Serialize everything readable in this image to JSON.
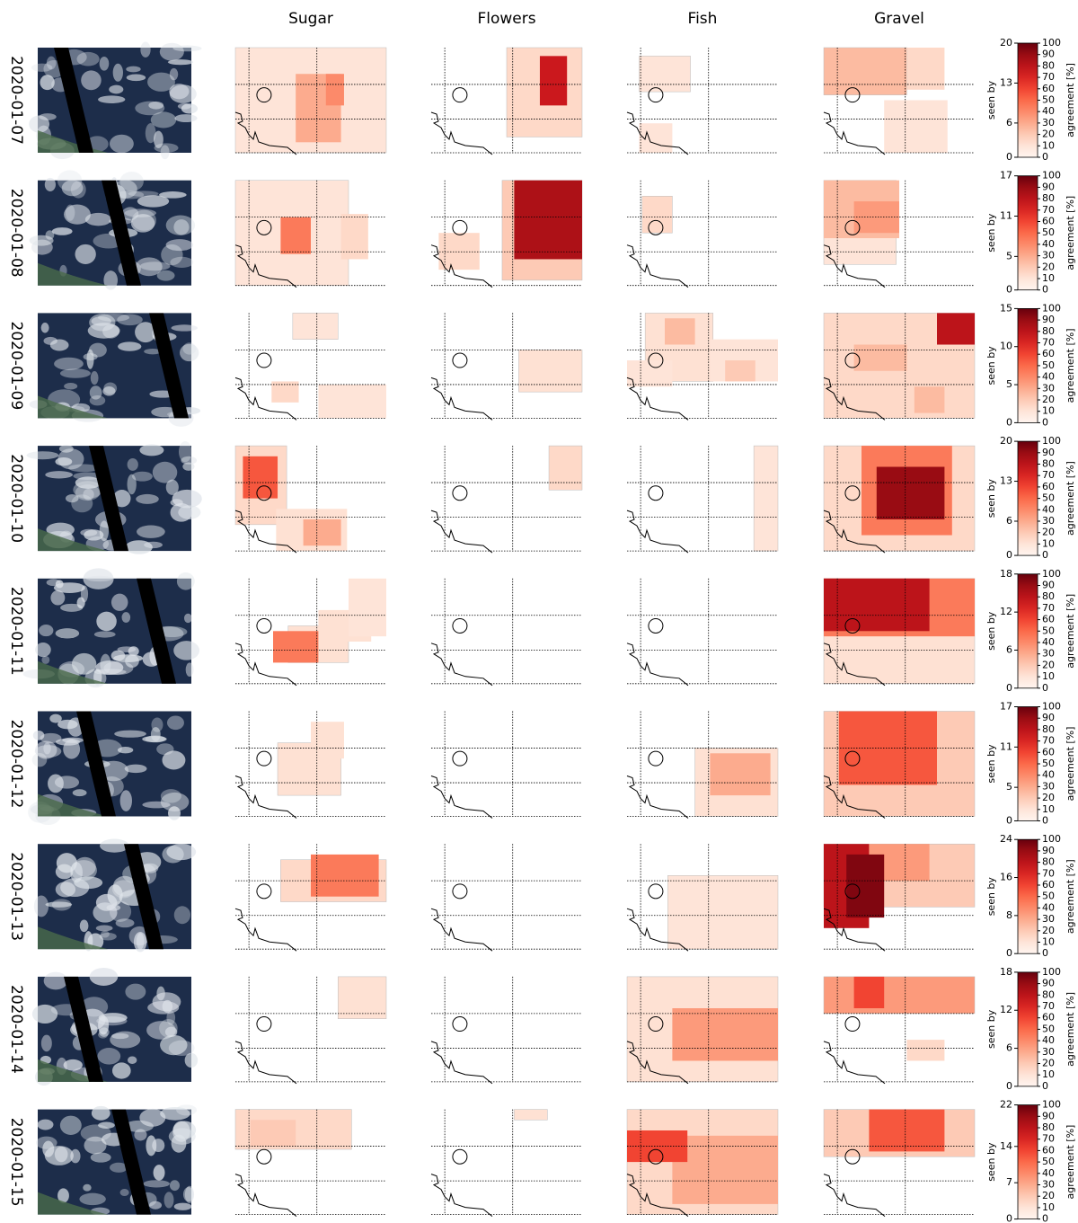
{
  "chart_data": {
    "type": "heatmap_grid",
    "columns": [
      "Sugar",
      "Flowers",
      "Fish",
      "Gravel"
    ],
    "xlim": [
      0,
      1
    ],
    "ylim": [
      1,
      0
    ],
    "xticks": [
      0.09,
      0.54
    ],
    "yticks": [
      0.35,
      0.68,
      1.0
    ],
    "grid": true,
    "marker": [
      0.19,
      0.45
    ],
    "colorbar": {
      "label": "seen by",
      "agreement_label": "agreement [%]",
      "agreement_lim": [
        0,
        100
      ],
      "agreement_ticks": [
        0,
        10,
        20,
        30,
        40,
        50,
        60,
        70,
        80,
        90,
        100
      ],
      "cmap": "Reds"
    },
    "rows": [
      {
        "date": "2020-01-07",
        "seen_by_lim": [
          0,
          20
        ],
        "seen_by_ticks": [
          0,
          6,
          13,
          20
        ],
        "panels": [
          [
            {
              "x": [
                0,
                1
              ],
              "y": [
                0,
                1
              ],
              "value": 10
            },
            {
              "x": [
                0.4,
                0.7
              ],
              "y": [
                0.25,
                0.9
              ],
              "value": 30
            },
            {
              "x": [
                0.6,
                0.72
              ],
              "y": [
                0.25,
                0.55
              ],
              "value": 40
            }
          ],
          [
            {
              "x": [
                0.5,
                1
              ],
              "y": [
                0,
                0.85
              ],
              "value": 15
            },
            {
              "x": [
                0.72,
                0.9
              ],
              "y": [
                0.08,
                0.55
              ],
              "value": 75
            }
          ],
          [
            {
              "x": [
                0.08,
                0.42
              ],
              "y": [
                0.08,
                0.42
              ],
              "value": 10
            },
            {
              "x": [
                0.08,
                0.3
              ],
              "y": [
                0.72,
                1
              ],
              "value": 10
            }
          ],
          [
            {
              "x": [
                0,
                0.55
              ],
              "y": [
                0,
                0.45
              ],
              "value": 25
            },
            {
              "x": [
                0.55,
                0.8
              ],
              "y": [
                0,
                0.4
              ],
              "value": 15
            },
            {
              "x": [
                0.4,
                0.82
              ],
              "y": [
                0.5,
                1
              ],
              "value": 10
            }
          ]
        ]
      },
      {
        "date": "2020-01-08",
        "seen_by_lim": [
          0,
          17
        ],
        "seen_by_ticks": [
          0,
          5,
          11,
          17
        ],
        "panels": [
          [
            {
              "x": [
                0,
                0.75
              ],
              "y": [
                0,
                1
              ],
              "value": 10
            },
            {
              "x": [
                0.3,
                0.5
              ],
              "y": [
                0.35,
                0.7
              ],
              "value": 45
            },
            {
              "x": [
                0.7,
                0.88
              ],
              "y": [
                0.32,
                0.75
              ],
              "value": 15
            }
          ],
          [
            {
              "x": [
                0.47,
                1
              ],
              "y": [
                0,
                0.95
              ],
              "value": 20
            },
            {
              "x": [
                0.55,
                1
              ],
              "y": [
                0,
                0.75
              ],
              "value": 85
            },
            {
              "x": [
                0.05,
                0.32
              ],
              "y": [
                0.5,
                0.85
              ],
              "value": 15
            }
          ],
          [
            {
              "x": [
                0.1,
                0.3
              ],
              "y": [
                0.15,
                0.5
              ],
              "value": 15
            }
          ],
          [
            {
              "x": [
                0,
                0.48
              ],
              "y": [
                0,
                0.8
              ],
              "value": 10
            },
            {
              "x": [
                0,
                0.5
              ],
              "y": [
                0,
                0.55
              ],
              "value": 25
            },
            {
              "x": [
                0.2,
                0.5
              ],
              "y": [
                0.2,
                0.5
              ],
              "value": 35
            }
          ]
        ]
      },
      {
        "date": "2020-01-09",
        "seen_by_lim": [
          0,
          15
        ],
        "seen_by_ticks": [
          0,
          5,
          10,
          15
        ],
        "panels": [
          [
            {
              "x": [
                0.38,
                0.68
              ],
              "y": [
                0,
                0.25
              ],
              "value": 10
            },
            {
              "x": [
                0.24,
                0.42
              ],
              "y": [
                0.65,
                0.85
              ],
              "value": 15
            },
            {
              "x": [
                0.55,
                1
              ],
              "y": [
                0.68,
                1
              ],
              "value": 10
            }
          ],
          [
            {
              "x": [
                0.58,
                1
              ],
              "y": [
                0.35,
                0.75
              ],
              "value": 12
            }
          ],
          [
            {
              "x": [
                0.12,
                0.57
              ],
              "y": [
                0,
                0.65
              ],
              "value": 12
            },
            {
              "x": [
                0.25,
                0.45
              ],
              "y": [
                0.05,
                0.3
              ],
              "value": 25
            },
            {
              "x": [
                0.55,
                1
              ],
              "y": [
                0.25,
                0.65
              ],
              "value": 10
            },
            {
              "x": [
                0,
                0.3
              ],
              "y": [
                0.45,
                0.7
              ],
              "value": 10
            },
            {
              "x": [
                0.65,
                0.85
              ],
              "y": [
                0.45,
                0.65
              ],
              "value": 20
            }
          ],
          [
            {
              "x": [
                0,
                1
              ],
              "y": [
                0,
                1
              ],
              "value": 15
            },
            {
              "x": [
                0.75,
                1
              ],
              "y": [
                0,
                0.3
              ],
              "value": 80
            },
            {
              "x": [
                0.2,
                0.55
              ],
              "y": [
                0.3,
                0.55
              ],
              "value": 25
            },
            {
              "x": [
                0.6,
                0.8
              ],
              "y": [
                0.7,
                0.95
              ],
              "value": 25
            }
          ]
        ]
      },
      {
        "date": "2020-01-10",
        "seen_by_lim": [
          0,
          20
        ],
        "seen_by_ticks": [
          0,
          6,
          13,
          20
        ],
        "panels": [
          [
            {
              "x": [
                0,
                0.34
              ],
              "y": [
                0,
                0.75
              ],
              "value": 15
            },
            {
              "x": [
                0.05,
                0.28
              ],
              "y": [
                0.1,
                0.5
              ],
              "value": 55
            },
            {
              "x": [
                0.27,
                0.74
              ],
              "y": [
                0.6,
                1
              ],
              "value": 12
            },
            {
              "x": [
                0.45,
                0.7
              ],
              "y": [
                0.7,
                0.95
              ],
              "value": 30
            }
          ],
          [
            {
              "x": [
                0.78,
                1
              ],
              "y": [
                0,
                0.42
              ],
              "value": 15
            }
          ],
          [
            {
              "x": [
                0.84,
                1
              ],
              "y": [
                0,
                1
              ],
              "value": 10
            }
          ],
          [
            {
              "x": [
                0,
                1
              ],
              "y": [
                0,
                1
              ],
              "value": 15
            },
            {
              "x": [
                0.25,
                0.85
              ],
              "y": [
                0,
                0.85
              ],
              "value": 45
            },
            {
              "x": [
                0.35,
                0.8
              ],
              "y": [
                0.2,
                0.7
              ],
              "value": 90
            }
          ]
        ]
      },
      {
        "date": "2020-01-11",
        "seen_by_lim": [
          0,
          18
        ],
        "seen_by_ticks": [
          0,
          6,
          12,
          18
        ],
        "panels": [
          [
            {
              "x": [
                0.35,
                0.75
              ],
              "y": [
                0.45,
                0.8
              ],
              "value": 12
            },
            {
              "x": [
                0.55,
                0.9
              ],
              "y": [
                0.3,
                0.6
              ],
              "value": 12
            },
            {
              "x": [
                0.75,
                1
              ],
              "y": [
                0,
                0.55
              ],
              "value": 10
            },
            {
              "x": [
                0.25,
                0.55
              ],
              "y": [
                0.5,
                0.8
              ],
              "value": 45
            }
          ],
          [],
          [],
          [
            {
              "x": [
                0,
                1
              ],
              "y": [
                0,
                1
              ],
              "value": 12
            },
            {
              "x": [
                0,
                1
              ],
              "y": [
                0,
                0.55
              ],
              "value": 45
            },
            {
              "x": [
                0,
                0.7
              ],
              "y": [
                0,
                0.5
              ],
              "value": 80
            }
          ]
        ]
      },
      {
        "date": "2020-01-12",
        "seen_by_lim": [
          0,
          17
        ],
        "seen_by_ticks": [
          0,
          5,
          11,
          17
        ],
        "panels": [
          [
            {
              "x": [
                0.28,
                0.7
              ],
              "y": [
                0.3,
                0.8
              ],
              "value": 12
            },
            {
              "x": [
                0.5,
                0.72
              ],
              "y": [
                0.1,
                0.45
              ],
              "value": 12
            }
          ],
          [],
          [
            {
              "x": [
                0.45,
                1
              ],
              "y": [
                0.35,
                1
              ],
              "value": 12
            },
            {
              "x": [
                0.55,
                0.95
              ],
              "y": [
                0.4,
                0.8
              ],
              "value": 30
            }
          ],
          [
            {
              "x": [
                0,
                1
              ],
              "y": [
                0,
                1
              ],
              "value": 20
            },
            {
              "x": [
                0.1,
                0.75
              ],
              "y": [
                0,
                0.7
              ],
              "value": 55
            }
          ]
        ]
      },
      {
        "date": "2020-01-13",
        "seen_by_lim": [
          0,
          24
        ],
        "seen_by_ticks": [
          0,
          8,
          16,
          24
        ],
        "panels": [
          [
            {
              "x": [
                0.3,
                1
              ],
              "y": [
                0.15,
                0.55
              ],
              "value": 15
            },
            {
              "x": [
                0.5,
                0.95
              ],
              "y": [
                0.1,
                0.5
              ],
              "value": 45
            }
          ],
          [],
          [
            {
              "x": [
                0.27,
                1
              ],
              "y": [
                0.3,
                1
              ],
              "value": 10
            }
          ],
          [
            {
              "x": [
                0,
                1
              ],
              "y": [
                0,
                0.6
              ],
              "value": 20
            },
            {
              "x": [
                0.3,
                0.7
              ],
              "y": [
                0,
                0.35
              ],
              "value": 35
            },
            {
              "x": [
                0,
                0.3
              ],
              "y": [
                0,
                0.8
              ],
              "value": 80
            },
            {
              "x": [
                0.15,
                0.4
              ],
              "y": [
                0.1,
                0.7
              ],
              "value": 95
            }
          ]
        ]
      },
      {
        "date": "2020-01-14",
        "seen_by_lim": [
          0,
          18
        ],
        "seen_by_ticks": [
          0,
          6,
          12,
          18
        ],
        "panels": [
          [
            {
              "x": [
                0.68,
                1
              ],
              "y": [
                0,
                0.4
              ],
              "value": 12
            }
          ],
          [],
          [
            {
              "x": [
                0,
                1
              ],
              "y": [
                0,
                1
              ],
              "value": 12
            },
            {
              "x": [
                0.3,
                1
              ],
              "y": [
                0.3,
                0.8
              ],
              "value": 35
            }
          ],
          [
            {
              "x": [
                0,
                1
              ],
              "y": [
                0,
                0.35
              ],
              "value": 35
            },
            {
              "x": [
                0.2,
                0.4
              ],
              "y": [
                0,
                0.3
              ],
              "value": 60
            },
            {
              "x": [
                0.55,
                0.8
              ],
              "y": [
                0.6,
                0.8
              ],
              "value": 15
            }
          ]
        ]
      },
      {
        "date": "2020-01-15",
        "seen_by_lim": [
          0,
          22
        ],
        "seen_by_ticks": [
          0,
          7,
          14,
          22
        ],
        "panels": [
          [
            {
              "x": [
                0,
                0.77
              ],
              "y": [
                0,
                0.38
              ],
              "value": 15
            },
            {
              "x": [
                0.1,
                0.4
              ],
              "y": [
                0.1,
                0.35
              ],
              "value": 20
            }
          ],
          [
            {
              "x": [
                0.55,
                0.77
              ],
              "y": [
                0,
                0.1
              ],
              "value": 12
            }
          ],
          [
            {
              "x": [
                0,
                1
              ],
              "y": [
                0,
                1
              ],
              "value": 15
            },
            {
              "x": [
                0.3,
                1
              ],
              "y": [
                0.25,
                0.9
              ],
              "value": 30
            },
            {
              "x": [
                0,
                0.4
              ],
              "y": [
                0.2,
                0.5
              ],
              "value": 60
            }
          ],
          [
            {
              "x": [
                0,
                1
              ],
              "y": [
                0,
                0.45
              ],
              "value": 20
            },
            {
              "x": [
                0.3,
                0.8
              ],
              "y": [
                0,
                0.4
              ],
              "value": 55
            }
          ]
        ]
      }
    ]
  }
}
